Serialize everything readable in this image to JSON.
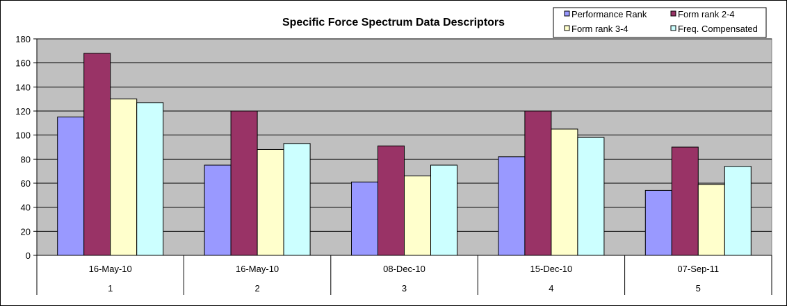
{
  "chart_data": {
    "type": "bar",
    "title": "Specific Force Spectrum Data Descriptors",
    "categories": [
      {
        "date": "16-May-10",
        "index": "1"
      },
      {
        "date": "16-May-10",
        "index": "2"
      },
      {
        "date": "08-Dec-10",
        "index": "3"
      },
      {
        "date": "15-Dec-10",
        "index": "4"
      },
      {
        "date": "07-Sep-11",
        "index": "5"
      }
    ],
    "series": [
      {
        "name": "Performance Rank",
        "color": "#9999ff",
        "values": [
          115,
          75,
          61,
          82,
          54
        ]
      },
      {
        "name": "Form rank 2-4",
        "color": "#993366",
        "values": [
          168,
          120,
          91,
          120,
          90
        ]
      },
      {
        "name": "Form rank 3-4",
        "color": "#ffffcc",
        "values": [
          130,
          88,
          66,
          105,
          59
        ]
      },
      {
        "name": "Freq. Compensated",
        "color": "#ccffff",
        "values": [
          127,
          93,
          75,
          98,
          74
        ]
      }
    ],
    "ylim": [
      0,
      180
    ],
    "yticks": [
      "0",
      "20",
      "40",
      "60",
      "80",
      "100",
      "120",
      "140",
      "160",
      "180"
    ],
    "grid": true,
    "legend_position": "top-right",
    "plot_background": "#c0c0c0"
  }
}
